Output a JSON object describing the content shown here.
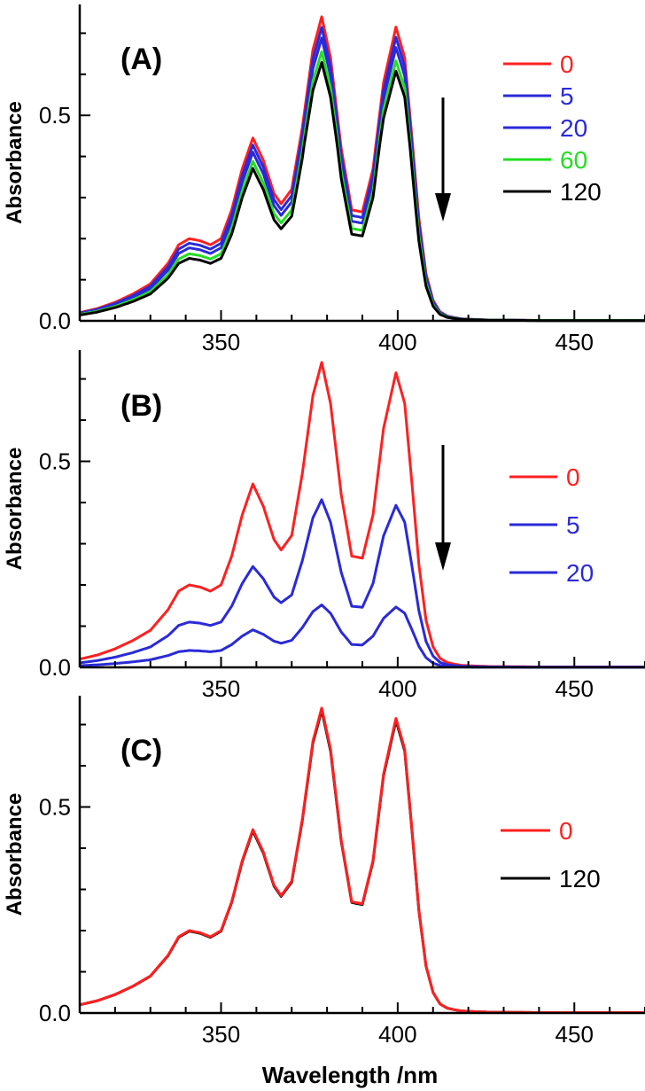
{
  "chart_data": [
    {
      "type": "line",
      "panel_label": "(A)",
      "ylabel": "Absorbance",
      "xlabel": "",
      "xlim": [
        310,
        470
      ],
      "ylim": [
        0,
        0.77
      ],
      "x_ticks": [
        350,
        400,
        450
      ],
      "x_tick_labels": [
        "350",
        "400",
        "450"
      ],
      "y_ticks": [
        0.0,
        0.5
      ],
      "y_tick_labels": [
        "0.0",
        "0.5"
      ],
      "legend_position": "right",
      "annotation": "downward arrow",
      "series": [
        {
          "name": "0",
          "color": "#ff2020",
          "scale": 1.0,
          "low_scale": 1.0
        },
        {
          "name": "5",
          "color": "#2a2ad8",
          "scale": 0.965,
          "low_scale": 0.93
        },
        {
          "name": "20",
          "color": "#2a2ad8",
          "scale": 0.93,
          "low_scale": 0.86
        },
        {
          "name": "60",
          "color": "#22dd22",
          "scale": 0.885,
          "low_scale": 0.77
        },
        {
          "name": "120",
          "color": "#000000",
          "scale": 0.85,
          "low_scale": 0.7
        }
      ]
    },
    {
      "type": "line",
      "panel_label": "(B)",
      "ylabel": "Absorbance",
      "xlabel": "",
      "xlim": [
        310,
        470
      ],
      "ylim": [
        0,
        0.77
      ],
      "x_ticks": [
        350,
        400,
        450
      ],
      "x_tick_labels": [
        "350",
        "400",
        "450"
      ],
      "y_ticks": [
        0.0,
        0.5
      ],
      "y_tick_labels": [
        "0.0",
        "0.5"
      ],
      "legend_position": "right",
      "annotation": "downward arrow",
      "series": [
        {
          "name": "0",
          "color": "#ff2020",
          "scale": 1.0,
          "low_scale": 1.0
        },
        {
          "name": "5",
          "color": "#2a2ad8",
          "scale": 0.55,
          "low_scale": 0.55
        },
        {
          "name": "20",
          "color": "#2a2ad8",
          "scale": 0.205,
          "low_scale": 0.205
        }
      ]
    },
    {
      "type": "line",
      "panel_label": "(C)",
      "ylabel": "Absorbance",
      "xlabel": "Wavelength /nm",
      "xlim": [
        310,
        470
      ],
      "ylim": [
        0,
        0.77
      ],
      "x_ticks": [
        350,
        400,
        450
      ],
      "x_tick_labels": [
        "350",
        "400",
        "450"
      ],
      "y_ticks": [
        0.0,
        0.5
      ],
      "y_tick_labels": [
        "0.0",
        "0.5"
      ],
      "legend_position": "right",
      "annotation": "",
      "series": [
        {
          "name": "120",
          "color": "#000000",
          "scale": 0.993,
          "low_scale": 0.993
        },
        {
          "name": "0",
          "color": "#ff2020",
          "scale": 1.0,
          "low_scale": 1.0
        }
      ]
    }
  ],
  "base_spectrum": {
    "wavelength_nm": [
      310,
      315,
      320,
      325,
      330,
      335,
      338,
      341,
      344,
      347,
      350,
      353,
      356,
      359,
      362,
      365,
      367,
      370,
      373,
      376,
      378.5,
      381,
      384,
      387,
      390,
      393,
      396,
      399.5,
      402,
      404,
      406,
      408,
      410,
      412,
      414,
      416,
      418,
      420,
      423,
      426,
      430,
      440,
      450,
      460,
      470
    ],
    "absorbance": [
      0.02,
      0.03,
      0.045,
      0.065,
      0.09,
      0.14,
      0.185,
      0.2,
      0.195,
      0.185,
      0.2,
      0.27,
      0.37,
      0.445,
      0.39,
      0.31,
      0.285,
      0.32,
      0.47,
      0.66,
      0.74,
      0.64,
      0.42,
      0.27,
      0.265,
      0.37,
      0.58,
      0.715,
      0.64,
      0.45,
      0.25,
      0.115,
      0.05,
      0.022,
      0.012,
      0.008,
      0.005,
      0.004,
      0.003,
      0.002,
      0.002,
      0.001,
      0.001,
      0.001,
      0.001
    ]
  }
}
